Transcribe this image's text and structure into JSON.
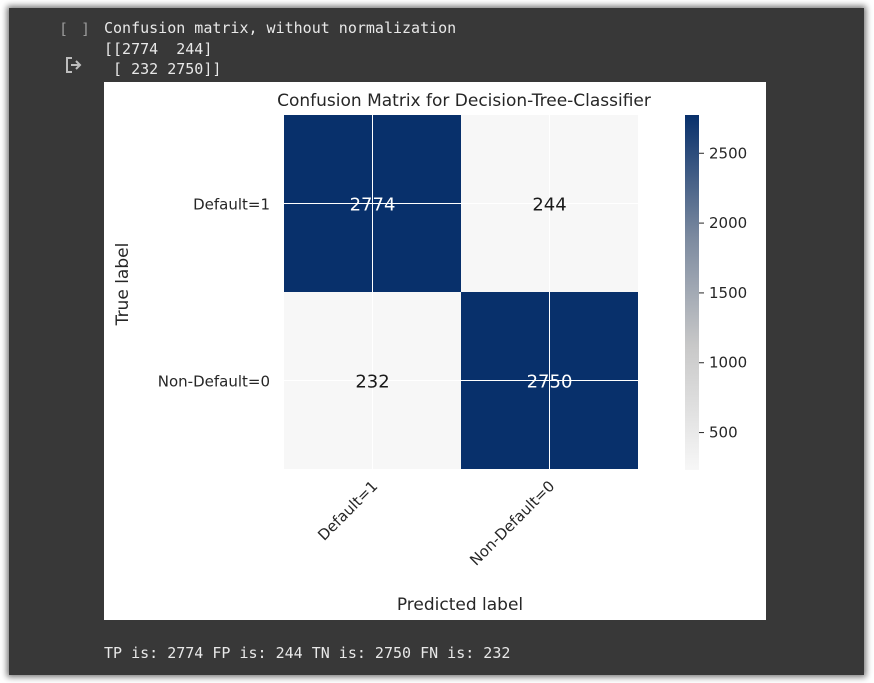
{
  "cell": {
    "bracket": "[ ]",
    "output_icon": "output-redirect-icon",
    "text_output_line1": "Confusion matrix, without normalization",
    "text_output_line2": "[[2774  244]",
    "text_output_line3": " [ 232 2750]]",
    "footer_text": "TP is: 2774 FP is: 244 TN is: 2750 FN is: 232"
  },
  "colors": {
    "background": "#383838",
    "text": "#e8e8e8",
    "cell_dark": "#08306b",
    "cell_light": "#f7f7f7"
  },
  "chart_data": {
    "type": "heatmap",
    "title": "Confusion Matrix for Decision-Tree-Classifier",
    "xlabel": "Predicted label",
    "ylabel": "True label",
    "x_ticklabels": [
      "Default=1",
      "Non-Default=0"
    ],
    "y_ticklabels": [
      "Default=1",
      "Non-Default=0"
    ],
    "values": [
      [
        2774,
        244
      ],
      [
        232,
        2750
      ]
    ],
    "colormap": "Blues",
    "colorbar": {
      "min": 232,
      "max": 2774,
      "ticks": [
        500,
        1000,
        1500,
        2000,
        2500
      ]
    },
    "grid": true
  }
}
